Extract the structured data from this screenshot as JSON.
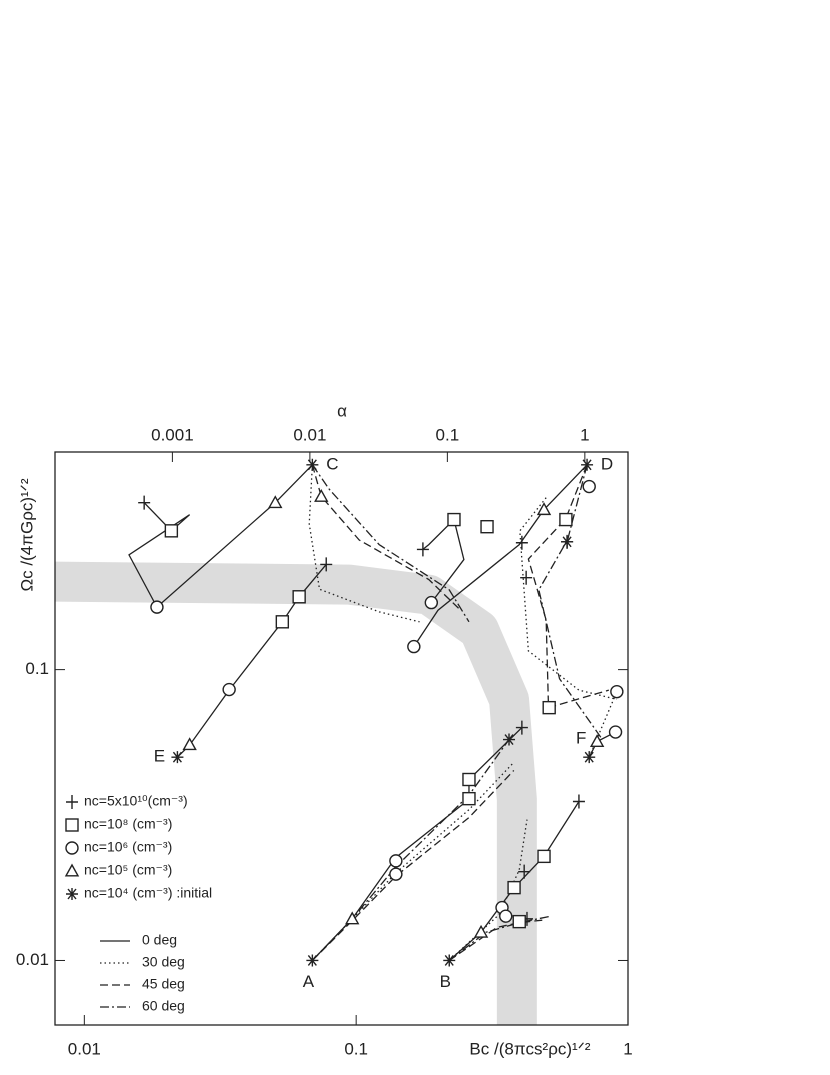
{
  "chart_data": {
    "type": "line",
    "x_label": "Bc /(8πcs²ρc)¹ᐟ²",
    "y_label": "Ωc /(4πGρc)¹ᐟ²",
    "top_label": "α",
    "xscale": "log",
    "yscale": "log",
    "topscale": "log",
    "xlim": [
      0.0078,
      1
    ],
    "xticks": [
      0.01,
      0.1,
      1
    ],
    "ylim": [
      0.006,
      0.56
    ],
    "yticks": [
      0.01,
      0.1
    ],
    "toplim": [
      0.00014,
      2.06
    ],
    "topticks": [
      0.001,
      0.01,
      0.1,
      1
    ],
    "grid": false,
    "band": {
      "color": "#dcdcdc",
      "x": [
        0.0078,
        0.0943,
        0.185,
        0.283,
        0.365,
        0.39,
        0.39
      ],
      "y": [
        0.2006,
        0.196,
        0.181,
        0.137,
        0.0789,
        0.0358,
        0.006
      ]
    },
    "series": [
      {
        "name": "0 deg",
        "style": "solid",
        "color": "#222222",
        "tracks": [
          {
            "x": [
              0.022,
              0.0244,
              0.0341,
              0.0535,
              0.0617,
              0.0776
            ],
            "y": [
              0.05,
              0.055,
              0.085,
              0.146,
              0.178,
              0.23
            ]
          },
          {
            "x": [
              0.069,
              0.0504,
              0.0185,
              0.0146,
              0.0244,
              0.0209,
              0.0166
            ],
            "y": [
              0.506,
              0.375,
              0.164,
              0.248,
              0.341,
              0.3,
              0.375
            ]
          },
          {
            "x": [
              0.707,
              0.491,
              0.398,
              0.2,
              0.163
            ],
            "y": [
              0.506,
              0.355,
              0.269,
              0.16,
              0.12
            ]
          },
          {
            "x": [
              0.176,
              0.185,
              0.229,
              0.249,
              0.189
            ],
            "y": [
              0.259,
              0.269,
              0.328,
              0.239,
              0.17
            ]
          },
          {
            "x": [
              0.069,
              0.0967,
              0.14,
              0.26,
              0.26,
              0.407
            ],
            "y": [
              0.01,
              0.0139,
              0.0226,
              0.0358,
              0.0419,
              0.0632
            ]
          },
          {
            "x": [
              0.22,
              0.288,
              0.381,
              0.491,
              0.66
            ],
            "y": [
              0.01,
              0.0125,
              0.0178,
              0.0228,
              0.0352
            ]
          },
          {
            "x": [
              0.72,
              0.77,
              0.9
            ],
            "y": [
              0.05,
              0.0566,
              0.061
            ]
          }
        ]
      },
      {
        "name": "30 deg",
        "style": "dotted",
        "color": "#222222",
        "tracks": [
          {
            "x": [
              0.069,
              0.0672,
              0.0733,
              0.1215,
              0.171
            ],
            "y": [
              0.506,
              0.317,
              0.189,
              0.158,
              0.146
            ]
          },
          {
            "x": [
              0.5,
              0.4,
              0.43,
              0.66,
              0.91
            ],
            "y": [
              0.39,
              0.3,
              0.116,
              0.085,
              0.079
            ]
          },
          {
            "x": [
              0.069,
              0.0967,
              0.14,
              0.26,
              0.38
            ],
            "y": [
              0.01,
              0.0139,
              0.02,
              0.033,
              0.048
            ]
          },
          {
            "x": [
              0.22,
              0.336,
              0.398,
              0.425
            ],
            "y": [
              0.01,
              0.0144,
              0.0205,
              0.0305
            ]
          },
          {
            "x": [
              0.72,
              0.91
            ],
            "y": [
              0.05,
              0.084
            ]
          }
        ]
      },
      {
        "name": "45 deg",
        "style": "dashed",
        "color": "#222222",
        "tracks": [
          {
            "x": [
              0.069,
              0.0744,
              0.1026,
              0.185,
              0.239
            ],
            "y": [
              0.506,
              0.394,
              0.279,
              0.204,
              0.162
            ]
          },
          {
            "x": [
              0.707,
              0.59,
              0.43,
              0.5,
              0.51,
              0.85
            ],
            "y": [
              0.506,
              0.33,
              0.24,
              0.148,
              0.074,
              0.085
            ]
          },
          {
            "x": [
              0.069,
              0.0967,
              0.14,
              0.26,
              0.38
            ],
            "y": [
              0.01,
              0.0137,
              0.0195,
              0.031,
              0.045
            ]
          },
          {
            "x": [
              0.22,
              0.33,
              0.4,
              0.5
            ],
            "y": [
              0.01,
              0.013,
              0.0135,
              0.0138
            ]
          }
        ]
      },
      {
        "name": "60 deg",
        "style": "dashdot",
        "color": "#222222",
        "tracks": [
          {
            "x": [
              0.069,
              0.0796,
              0.1215,
              0.22,
              0.26
            ],
            "y": [
              0.506,
              0.417,
              0.269,
              0.188,
              0.146
            ]
          },
          {
            "x": [
              0.707,
              0.6,
              0.47,
              0.56,
              0.8
            ],
            "y": [
              0.506,
              0.28,
              0.188,
              0.093,
              0.058
            ]
          },
          {
            "x": [
              0.069,
              0.0967,
              0.14,
              0.26,
              0.365
            ],
            "y": [
              0.01,
              0.0139,
              0.021,
              0.037,
              0.0575
            ]
          },
          {
            "x": [
              0.22,
              0.3,
              0.4,
              0.52
            ],
            "y": [
              0.01,
              0.0125,
              0.0135,
              0.0142
            ]
          }
        ]
      }
    ],
    "markers": [
      {
        "name": "nc=5x10¹⁰(cm⁻³)",
        "symbol": "plus",
        "x": [
          0.0166,
          0.0776,
          0.176,
          0.407,
          0.422,
          0.597,
          0.407,
          0.66,
          0.415,
          0.425
        ],
        "y": [
          0.375,
          0.23,
          0.259,
          0.273,
          0.207,
          0.275,
          0.0632,
          0.0352,
          0.0202,
          0.0139
        ]
      },
      {
        "name": "nc=10⁸ (cm⁻³)",
        "symbol": "square",
        "x": [
          0.0209,
          0.0535,
          0.0617,
          0.229,
          0.303,
          0.591,
          0.513,
          0.26,
          0.26,
          0.491,
          0.381,
          0.398
        ],
        "y": [
          0.3,
          0.146,
          0.178,
          0.328,
          0.31,
          0.328,
          0.074,
          0.0419,
          0.036,
          0.0228,
          0.0178,
          0.0136
        ]
      },
      {
        "name": "nc=10⁶ (cm⁻³)",
        "symbol": "circle",
        "x": [
          0.0185,
          0.0341,
          0.189,
          0.163,
          0.72,
          0.91,
          0.9,
          0.14,
          0.14,
          0.344,
          0.355
        ],
        "y": [
          0.164,
          0.0854,
          0.17,
          0.12,
          0.426,
          0.084,
          0.061,
          0.022,
          0.0198,
          0.0152,
          0.0142
        ]
      },
      {
        "name": "nc=10⁵ (cm⁻³)",
        "symbol": "triangle",
        "x": [
          0.0244,
          0.0504,
          0.0744,
          0.491,
          0.77,
          0.0967,
          0.288
        ],
        "y": [
          0.0552,
          0.375,
          0.394,
          0.355,
          0.0566,
          0.0139,
          0.0125
        ]
      },
      {
        "name": "nc=10⁴ (cm⁻³) :initial",
        "symbol": "star",
        "x": [
          0.069,
          0.707,
          0.022,
          0.069,
          0.22,
          0.72,
          0.597,
          0.365
        ],
        "y": [
          0.506,
          0.506,
          0.05,
          0.01,
          0.01,
          0.05,
          0.275,
          0.0575
        ]
      }
    ],
    "point_labels": [
      {
        "text": "C",
        "x": 0.069,
        "y": 0.506,
        "side": "right"
      },
      {
        "text": "D",
        "x": 0.707,
        "y": 0.506,
        "side": "right"
      },
      {
        "text": "E",
        "x": 0.022,
        "y": 0.05,
        "side": "left"
      },
      {
        "text": "A",
        "x": 0.069,
        "y": 0.01,
        "side": "below"
      },
      {
        "text": "B",
        "x": 0.22,
        "y": 0.01,
        "side": "below"
      },
      {
        "text": "F",
        "x": 0.72,
        "y": 0.05,
        "side": "upleft"
      }
    ]
  }
}
